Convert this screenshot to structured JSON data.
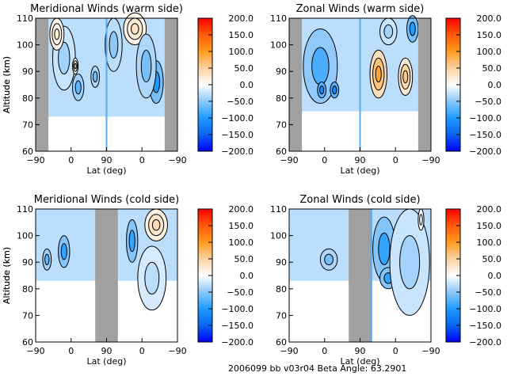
{
  "footer": {
    "text": "2006099 bb v03r04   Beta Angle: 63.2901"
  },
  "colorbar": {
    "ticks": [
      "200.0",
      "150.0",
      "100.0",
      "50.0",
      "0.0",
      "-50.0",
      "-100.0",
      "-150.0",
      "-200.0"
    ],
    "range": [
      -200,
      200
    ],
    "colors": [
      "#0000ff",
      "#0a64f0",
      "#1e9bff",
      "#8cc8fa",
      "#ffffff",
      "#fad2a0",
      "#ff9b1e",
      "#ff5a0a",
      "#ff0000"
    ]
  },
  "chart_data": [
    {
      "type": "heatmap",
      "title": "Meridional Winds (warm side)",
      "xlabel": "Lat (deg)",
      "ylabel": "Altitude (km)",
      "xticks": [
        "-90",
        "0",
        "90",
        "0",
        "-90"
      ],
      "yticks": [
        "60",
        "70",
        "80",
        "90",
        "100",
        "110"
      ],
      "ylim": [
        60,
        110
      ],
      "no_data_bands": [
        [
          0,
          0.09
        ],
        [
          0.91,
          1.0
        ]
      ],
      "divider": 0.5,
      "data_floor_km": 73,
      "blobs": [
        {
          "x": 0.2,
          "y": 95,
          "w": 0.08,
          "h": 12,
          "v": -40
        },
        {
          "x": 0.3,
          "y": 84,
          "w": 0.04,
          "h": 5,
          "v": -70
        },
        {
          "x": 0.42,
          "y": 88,
          "w": 0.03,
          "h": 4,
          "v": -60
        },
        {
          "x": 0.55,
          "y": 100,
          "w": 0.06,
          "h": 10,
          "v": -50
        },
        {
          "x": 0.7,
          "y": 106,
          "w": 0.08,
          "h": 6,
          "v": 30
        },
        {
          "x": 0.85,
          "y": 86,
          "w": 0.05,
          "h": 8,
          "v": -100
        },
        {
          "x": 0.78,
          "y": 92,
          "w": 0.07,
          "h": 12,
          "v": -60
        },
        {
          "x": 0.15,
          "y": 104,
          "w": 0.05,
          "h": 6,
          "v": 20
        },
        {
          "x": 0.28,
          "y": 92,
          "w": 0.02,
          "h": 3,
          "v": 20
        }
      ]
    },
    {
      "type": "heatmap",
      "title": "Zonal Winds (warm side)",
      "xlabel": "Lat (deg)",
      "ylabel": "Altitude (km)",
      "xticks": [
        "-90",
        "0",
        "90",
        "0",
        "-90"
      ],
      "yticks": [
        "60",
        "70",
        "80",
        "90",
        "100",
        "110"
      ],
      "ylim": [
        60,
        110
      ],
      "no_data_bands": [
        [
          0,
          0.09
        ],
        [
          0.91,
          1.0
        ]
      ],
      "divider": 0.5,
      "data_floor_km": 75,
      "blobs": [
        {
          "x": 0.22,
          "y": 92,
          "w": 0.12,
          "h": 14,
          "v": -80
        },
        {
          "x": 0.23,
          "y": 83,
          "w": 0.03,
          "h": 3,
          "v": -120
        },
        {
          "x": 0.32,
          "y": 83,
          "w": 0.03,
          "h": 3,
          "v": -120
        },
        {
          "x": 0.63,
          "y": 89,
          "w": 0.06,
          "h": 9,
          "v": 90
        },
        {
          "x": 0.82,
          "y": 88,
          "w": 0.05,
          "h": 7,
          "v": 60
        },
        {
          "x": 0.87,
          "y": 106,
          "w": 0.04,
          "h": 5,
          "v": -100
        },
        {
          "x": 0.7,
          "y": 105,
          "w": 0.06,
          "h": 5,
          "v": -40
        }
      ]
    },
    {
      "type": "heatmap",
      "title": "Meridional Winds (cold side)",
      "xlabel": "Lat (deg)",
      "ylabel": "Altitude (km)",
      "xticks": [
        "-90",
        "0",
        "90",
        "0",
        "-90"
      ],
      "yticks": [
        "60",
        "70",
        "80",
        "90",
        "100",
        "110"
      ],
      "ylim": [
        60,
        110
      ],
      "no_data_bands": [
        [
          0.42,
          0.58
        ]
      ],
      "divider": null,
      "data_floor_km": 83,
      "blobs": [
        {
          "x": 0.08,
          "y": 91,
          "w": 0.03,
          "h": 4,
          "v": -70
        },
        {
          "x": 0.2,
          "y": 94,
          "w": 0.04,
          "h": 6,
          "v": -90
        },
        {
          "x": 0.68,
          "y": 98,
          "w": 0.04,
          "h": 8,
          "v": -90
        },
        {
          "x": 0.85,
          "y": 104,
          "w": 0.08,
          "h": 6,
          "v": 40
        },
        {
          "x": 0.82,
          "y": 84,
          "w": 0.1,
          "h": 12,
          "v": -30
        }
      ]
    },
    {
      "type": "heatmap",
      "title": "Zonal Winds (cold side)",
      "xlabel": "Lat (deg)",
      "ylabel": "Altitude (km)",
      "xticks": [
        "-90",
        "0",
        "90",
        "0",
        "-90"
      ],
      "yticks": [
        "60",
        "70",
        "80",
        "90",
        "100",
        "110"
      ],
      "ylim": [
        60,
        110
      ],
      "no_data_bands": [
        [
          0.42,
          0.58
        ]
      ],
      "divider": 0.58,
      "data_floor_km": 83,
      "blobs": [
        {
          "x": 0.28,
          "y": 91,
          "w": 0.06,
          "h": 4,
          "v": -60
        },
        {
          "x": 0.67,
          "y": 95,
          "w": 0.08,
          "h": 12,
          "v": -90
        },
        {
          "x": 0.7,
          "y": 84,
          "w": 0.06,
          "h": 4,
          "v": -90
        },
        {
          "x": 0.85,
          "y": 90,
          "w": 0.14,
          "h": 20,
          "v": -40
        },
        {
          "x": 0.93,
          "y": 106,
          "w": 0.02,
          "h": 4,
          "v": 0
        }
      ]
    }
  ]
}
